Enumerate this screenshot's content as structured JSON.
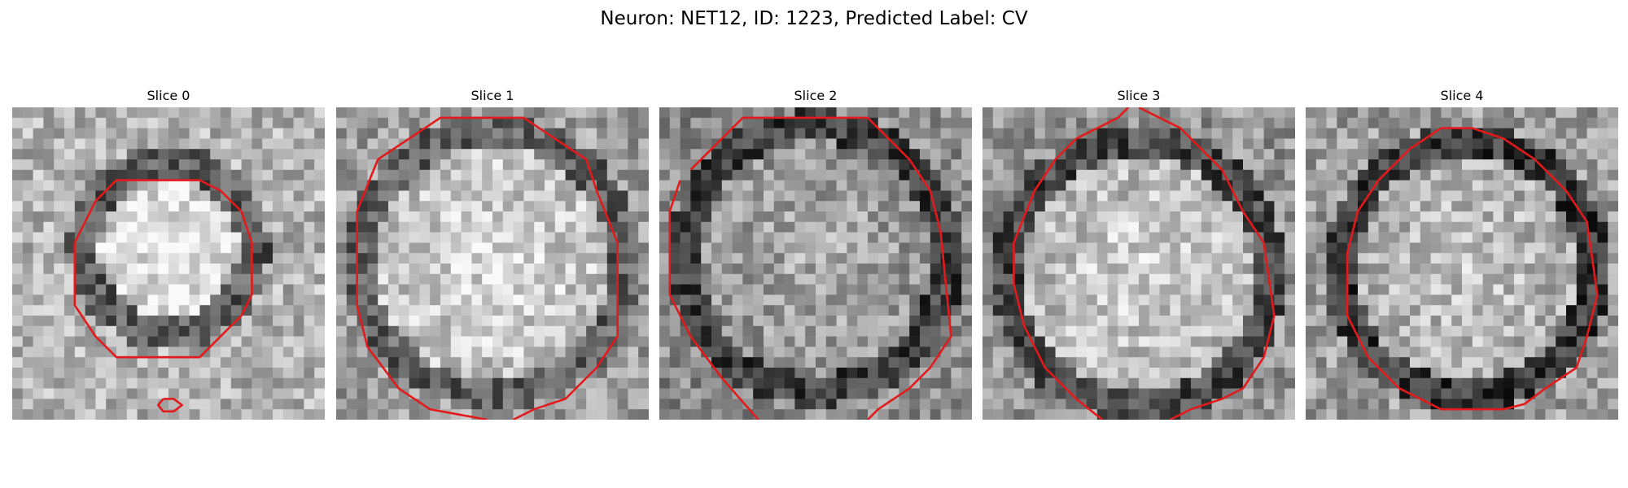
{
  "figure": {
    "title": "Neuron: NET12, ID: 1223, Predicted Label: CV"
  },
  "panels": [
    {
      "title": "Slice 0"
    },
    {
      "title": "Slice 1"
    },
    {
      "title": "Slice 2"
    },
    {
      "title": "Slice 3"
    },
    {
      "title": "Slice 4"
    }
  ],
  "colors": {
    "contour": "#e31a1c"
  }
}
